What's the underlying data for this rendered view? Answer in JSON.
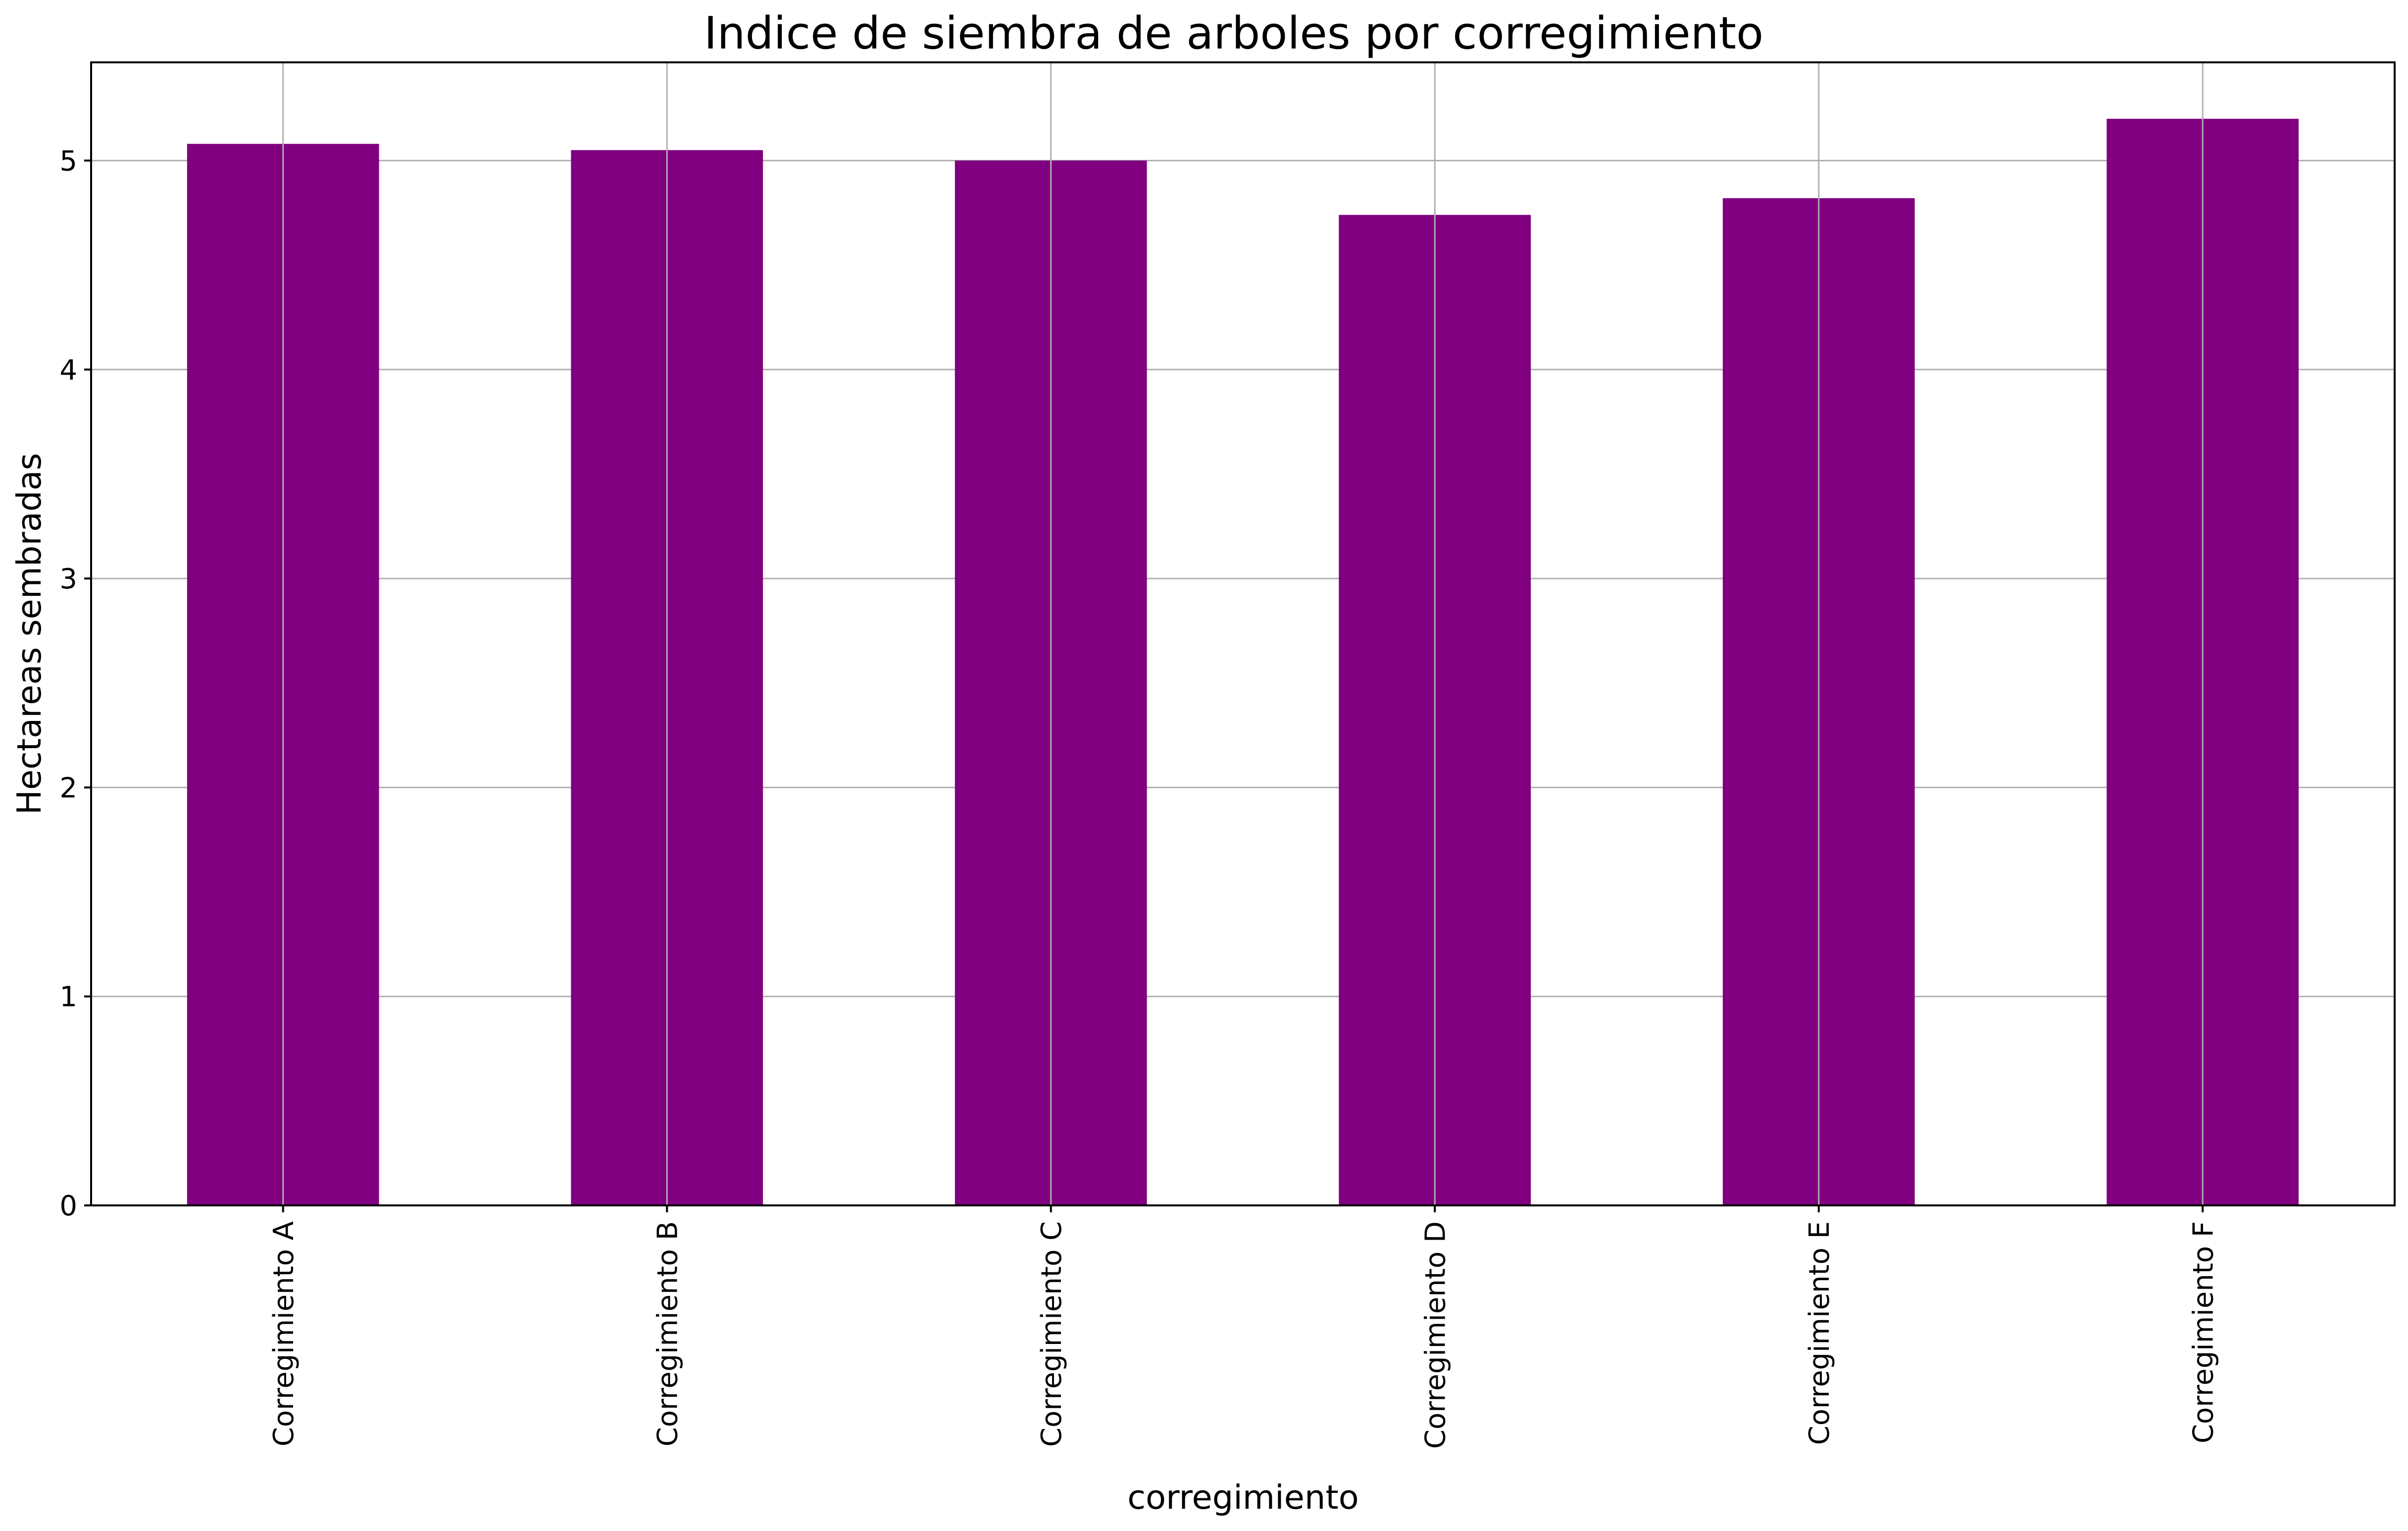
{
  "chart_data": {
    "type": "bar",
    "title": "Indice de siembra de arboles por corregimiento",
    "xlabel": "corregimiento",
    "ylabel": "Hectareas sembradas",
    "categories": [
      "Corregimiento A",
      "Corregimiento B",
      "Corregimiento C",
      "Corregimiento D",
      "Corregimiento E",
      "Corregimiento F"
    ],
    "series": [
      {
        "values": [
          5.08,
          5.05,
          5.0,
          4.74,
          4.82,
          5.2
        ]
      }
    ],
    "ylim": [
      0,
      5.47
    ],
    "yticks": [
      "0",
      "1",
      "2",
      "3",
      "4",
      "5"
    ],
    "grid": true,
    "bar_color": "#800080",
    "grid_color": "#b0b0b0",
    "axis_color": "#000000"
  }
}
